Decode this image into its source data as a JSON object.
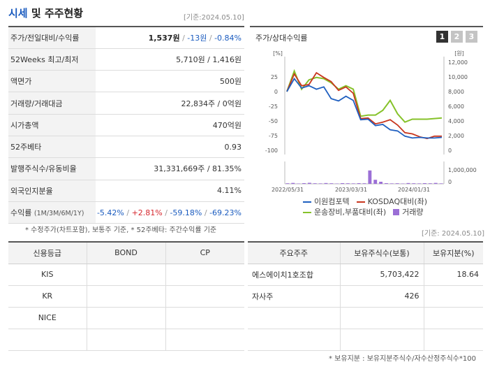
{
  "header": {
    "title_blue": "시세",
    "title_rest": "및 주주현황",
    "asof": "[기준:2024.05.10]"
  },
  "quote": {
    "price_label": "주가/전일대비/수익률",
    "price": "1,537원",
    "sep1": " / ",
    "change": "-13원",
    "sep2": " / ",
    "pct": "-0.84%",
    "w52_label": "52Weeks 최고/최저",
    "w52_value": "5,710원 / 1,416원",
    "par_label": "액면가",
    "par_value": "500원",
    "volume_label": "거래량/거래대금",
    "volume_value": "22,834주 / 0억원",
    "mcap_label": "시가총액",
    "mcap_value": "470억원",
    "beta_label": "52주베타",
    "beta_value": "0.93",
    "shares_label": "발행주식수/유동비율",
    "shares_value": "31,331,669주 / 81.35%",
    "foreign_label": "외국인지분율",
    "foreign_value": "4.11%",
    "return_label": "수익률",
    "return_sub": "(1M/3M/6M/1Y)",
    "return_1m": "-5.42%",
    "return_3m": "+2.81%",
    "return_6m": "-59.18%",
    "return_1y": "-69.23%",
    "slash": " / "
  },
  "note_left": "* 수정주가(차트포함), 보통주 기준, * 52주베타: 주간수익률 기준",
  "chart_panel": {
    "title": "주가/상대수익률",
    "tabs": [
      "1",
      "2",
      "3"
    ],
    "colors": {
      "stock": "#1f5fc0",
      "kosdaq": "#c8361e",
      "sector": "#86c22a",
      "volume": "#9b6fd6"
    }
  },
  "chart_data": {
    "type": "line",
    "left_unit": "[%]",
    "right_unit": "[원]",
    "y_left_ticks": [
      "25",
      "0",
      "-25",
      "-50",
      "-75",
      "-100"
    ],
    "y_left_top": "",
    "y_right_ticks": [
      "12,000",
      "10,000",
      "8,000",
      "6,000",
      "4,000",
      "2,000",
      "0"
    ],
    "volume_ticks": [
      "1,000,000",
      "0"
    ],
    "x_labels": [
      "2022/05/31",
      "2023/03/31",
      "2024/01/31"
    ],
    "ylim_left": [
      -100,
      50
    ],
    "ylim_right": [
      0,
      12000
    ],
    "series": [
      {
        "name": "이원컴포텍",
        "values": [
          0,
          22,
          6,
          10,
          4,
          8,
          -12,
          -16,
          -8,
          -15,
          -48,
          -47,
          -58,
          -56,
          -65,
          -67,
          -76,
          -79,
          -78,
          -79,
          -79,
          -78
        ]
      },
      {
        "name": "KOSDAQ대비(좌)",
        "values": [
          0,
          30,
          10,
          12,
          32,
          24,
          17,
          2,
          8,
          -3,
          -46,
          -45,
          -55,
          -52,
          -48,
          -57,
          -70,
          -72,
          -77,
          -80,
          -76,
          -76
        ]
      },
      {
        "name": "운송장비,부품대비(좌)",
        "values": [
          0,
          35,
          4,
          20,
          24,
          22,
          15,
          4,
          10,
          4,
          -42,
          -40,
          -40,
          -32,
          -15,
          -38,
          -52,
          -47,
          -47,
          -47,
          -46,
          -45
        ]
      }
    ],
    "volume": {
      "name": "거래량",
      "values": [
        0.05,
        0.08,
        0.03,
        0.06,
        0.09,
        0.05,
        0.04,
        0.07,
        0.05,
        0.03,
        0.06,
        0.05,
        0.04,
        0.06,
        0.05,
        1.15,
        0.35,
        0.18,
        0.06,
        0.04,
        0.05,
        0.03,
        0.07,
        0.05,
        0.04,
        0.06,
        0.05,
        0.08,
        0.04
      ]
    }
  },
  "legend": {
    "stock": "이원컴포텍",
    "kosdaq": "KOSDAQ대비(좌)",
    "sector": "운송장비,부품대비(좌)",
    "volume": "거래량"
  },
  "asof_right": "[기준: 2024.05.10]",
  "credit": {
    "headers": [
      "신용등급",
      "BOND",
      "CP"
    ],
    "rows": [
      [
        "KIS",
        "",
        ""
      ],
      [
        "KR",
        "",
        ""
      ],
      [
        "NICE",
        "",
        ""
      ],
      [
        "",
        "",
        ""
      ]
    ]
  },
  "holders": {
    "headers": [
      "주요주주",
      "보유주식수(보통)",
      "보유지분(%)"
    ],
    "rows": [
      [
        "에스에이치1호조합",
        "5,703,422",
        "18.64"
      ],
      [
        "자사주",
        "426",
        ""
      ],
      [
        "",
        "",
        ""
      ],
      [
        "",
        "",
        ""
      ]
    ]
  },
  "note_bottom": "* 보유지분 : 보유지분주식수/자수산정주식수*100"
}
